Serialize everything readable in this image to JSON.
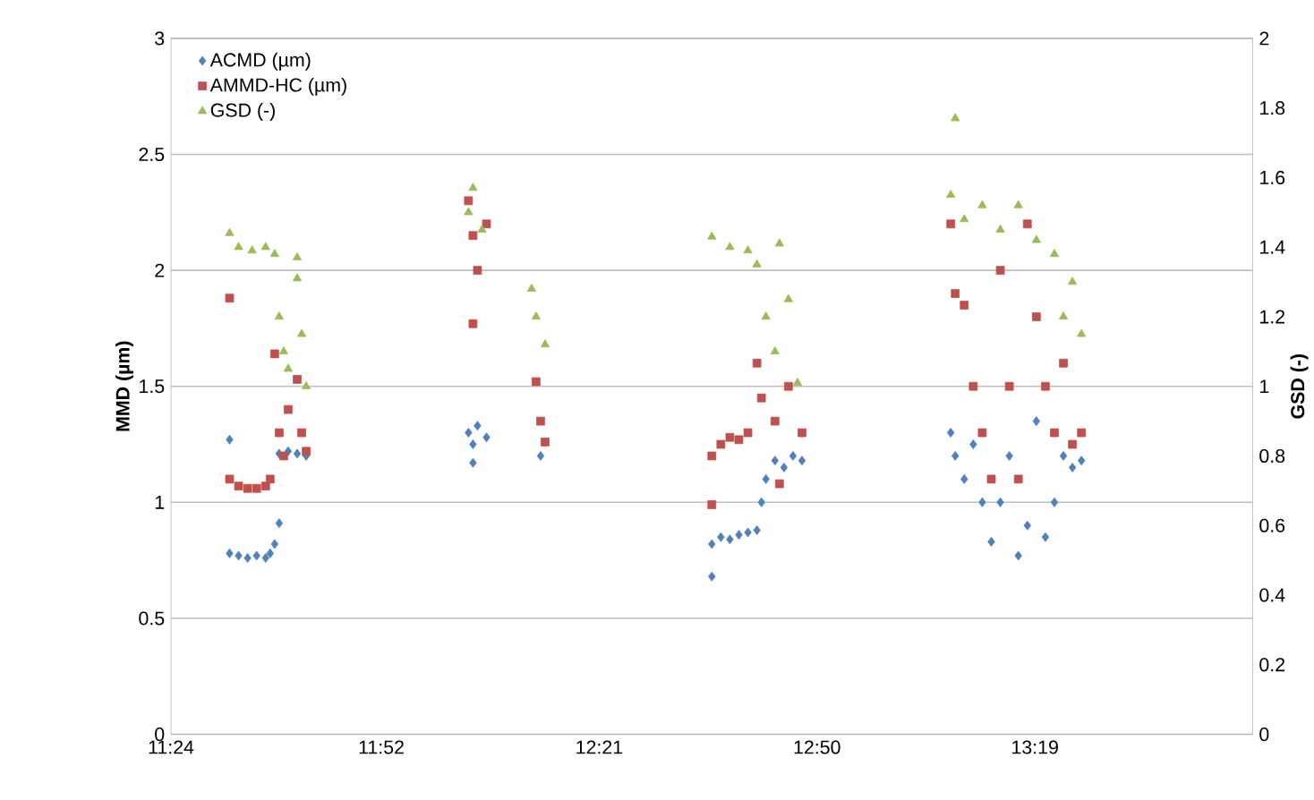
{
  "chart_data": {
    "type": "scatter",
    "xlabel": null,
    "ylabel": "MMD (µm)",
    "y2label": "GSD (-)",
    "xlim": [
      11.4,
      13.8
    ],
    "xticks": [
      {
        "value": 11.4,
        "label": "11:24"
      },
      {
        "value": 11.8667,
        "label": "11:52"
      },
      {
        "value": 12.35,
        "label": "12:21"
      },
      {
        "value": 12.8333,
        "label": "12:50"
      },
      {
        "value": 13.3167,
        "label": "13:19"
      }
    ],
    "ylim": [
      0,
      3
    ],
    "yticks": [
      0,
      0.5,
      1,
      1.5,
      2,
      2.5,
      3
    ],
    "y2lim": [
      0,
      2
    ],
    "y2ticks": [
      0,
      0.2,
      0.4,
      0.6,
      0.8,
      1,
      1.2,
      1.4,
      1.6,
      1.8,
      2
    ],
    "grid": "y",
    "legend": "top left",
    "series": [
      {
        "name": "ACMD (µm)",
        "color": "#4f81bd",
        "marker": "diamond",
        "x": [
          11.53,
          11.53,
          11.55,
          11.57,
          11.59,
          11.61,
          11.62,
          11.63,
          11.64,
          11.64,
          11.66,
          11.68,
          11.7,
          12.06,
          12.07,
          12.07,
          12.08,
          12.1,
          12.22,
          12.6,
          12.6,
          12.62,
          12.64,
          12.66,
          12.68,
          12.7,
          12.71,
          12.72,
          12.74,
          12.76,
          12.78,
          12.8,
          13.13,
          13.14,
          13.16,
          13.18,
          13.2,
          13.22,
          13.24,
          13.26,
          13.28,
          13.3,
          13.32,
          13.34,
          13.36,
          13.38,
          13.4,
          13.42
        ],
        "values": [
          1.27,
          0.78,
          0.77,
          0.76,
          0.77,
          0.76,
          0.78,
          0.82,
          0.91,
          1.21,
          1.22,
          1.21,
          1.2,
          1.3,
          1.25,
          1.17,
          1.33,
          1.28,
          1.2,
          0.68,
          0.82,
          0.85,
          0.84,
          0.86,
          0.87,
          0.88,
          1.0,
          1.1,
          1.18,
          1.15,
          1.2,
          1.18,
          1.3,
          1.2,
          1.1,
          1.25,
          1.0,
          0.83,
          1.0,
          1.2,
          0.77,
          0.9,
          1.35,
          0.85,
          1.0,
          1.2,
          1.15,
          1.18
        ]
      },
      {
        "name": "AMMD-HC (µm)",
        "color": "#c0504d",
        "marker": "square",
        "x": [
          11.53,
          11.53,
          11.55,
          11.57,
          11.59,
          11.61,
          11.62,
          11.63,
          11.64,
          11.65,
          11.66,
          11.68,
          11.69,
          11.7,
          12.06,
          12.07,
          12.08,
          12.1,
          12.07,
          12.21,
          12.22,
          12.23,
          12.6,
          12.6,
          12.62,
          12.64,
          12.66,
          12.68,
          12.7,
          12.71,
          12.74,
          12.75,
          12.77,
          12.8,
          13.13,
          13.14,
          13.16,
          13.18,
          13.2,
          13.22,
          13.24,
          13.26,
          13.28,
          13.3,
          13.32,
          13.34,
          13.36,
          13.38,
          13.4,
          13.42
        ],
        "values": [
          1.88,
          1.1,
          1.07,
          1.06,
          1.06,
          1.07,
          1.1,
          1.64,
          1.3,
          1.2,
          1.4,
          1.53,
          1.3,
          1.22,
          2.3,
          2.15,
          2.0,
          2.2,
          1.77,
          1.52,
          1.35,
          1.26,
          0.99,
          1.2,
          1.25,
          1.28,
          1.27,
          1.3,
          1.6,
          1.45,
          1.35,
          1.08,
          1.5,
          1.3,
          2.2,
          1.9,
          1.85,
          1.5,
          1.3,
          1.1,
          2.0,
          1.5,
          1.1,
          2.2,
          1.8,
          1.5,
          1.3,
          1.6,
          1.25,
          1.3
        ]
      },
      {
        "name": "GSD (-)",
        "color": "#9bbb59",
        "marker": "triangle",
        "axis": "y2",
        "x": [
          11.53,
          11.55,
          11.58,
          11.61,
          11.63,
          11.64,
          11.65,
          11.66,
          11.68,
          11.68,
          11.69,
          11.7,
          12.06,
          12.07,
          12.09,
          12.2,
          12.21,
          12.23,
          12.6,
          12.64,
          12.68,
          12.7,
          12.72,
          12.74,
          12.75,
          12.77,
          12.79,
          13.14,
          13.13,
          13.16,
          13.2,
          13.24,
          13.28,
          13.32,
          13.36,
          13.4,
          13.42,
          13.38
        ],
        "values": [
          1.44,
          1.4,
          1.39,
          1.4,
          1.38,
          1.2,
          1.1,
          1.05,
          1.37,
          1.31,
          1.15,
          1.0,
          1.5,
          1.57,
          1.45,
          1.28,
          1.2,
          1.12,
          1.43,
          1.4,
          1.39,
          1.35,
          1.2,
          1.1,
          1.41,
          1.25,
          1.01,
          1.77,
          1.55,
          1.48,
          1.52,
          1.45,
          1.52,
          1.42,
          1.38,
          1.3,
          1.15,
          1.2
        ]
      }
    ]
  }
}
